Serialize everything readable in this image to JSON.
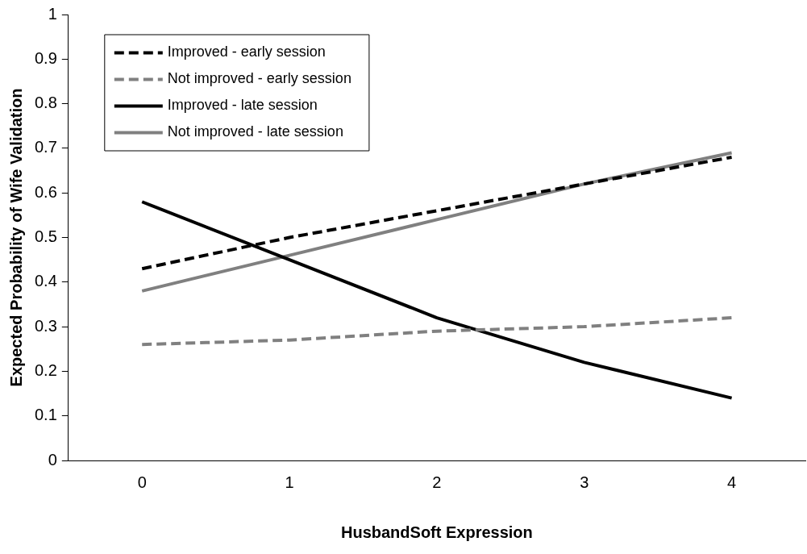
{
  "chart_data": {
    "type": "line",
    "xlabel": "HusbandSoft Expression",
    "ylabel": "Expected Probability of Wife Validation",
    "categories": [
      "0",
      "1",
      "2",
      "3",
      "4"
    ],
    "series": [
      {
        "name": "Improved - early session",
        "color": "#000000",
        "line_style": "dashed",
        "values": [
          0.43,
          0.5,
          0.56,
          0.62,
          0.68
        ]
      },
      {
        "name": "Not improved - early session",
        "color": "#808080",
        "line_style": "dashed",
        "values": [
          0.26,
          0.27,
          0.29,
          0.3,
          0.32
        ]
      },
      {
        "name": "Improved - late session",
        "color": "#000000",
        "line_style": "solid",
        "values": [
          0.58,
          0.45,
          0.32,
          0.22,
          0.14
        ]
      },
      {
        "name": "Not improved - late session",
        "color": "#808080",
        "line_style": "solid",
        "values": [
          0.38,
          0.46,
          0.54,
          0.62,
          0.69
        ]
      }
    ],
    "ylim": [
      0,
      1
    ],
    "yticks": [
      0,
      0.1,
      0.2,
      0.3,
      0.4,
      0.5,
      0.6,
      0.7,
      0.8,
      0.9,
      1
    ],
    "grid": false,
    "legend": "top left",
    "marker": "none"
  }
}
